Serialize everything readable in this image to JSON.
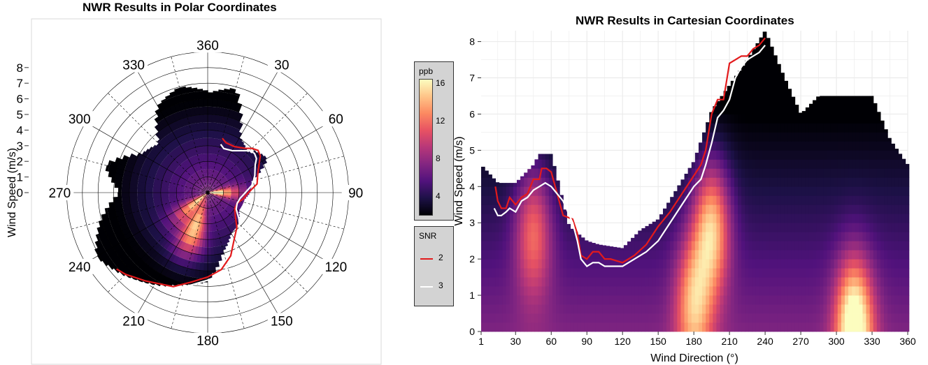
{
  "colors": {
    "palette": [
      "#000004",
      "#1d1147",
      "#51127c",
      "#832681",
      "#b73779",
      "#e75263",
      "#fc8961",
      "#fec488",
      "#fcfdbf"
    ],
    "snr2": "#e31a1c",
    "snr3": "#ffffff",
    "panel_bg": "#ffffff",
    "grid": "#ebebeb"
  },
  "icons": [
    "polar-chart",
    "cartesian-chart",
    "colorbar-legend",
    "line-legend"
  ],
  "legend": {
    "ppb": {
      "title": "ppb",
      "range": [
        2,
        16.5
      ],
      "ticks": [
        4,
        8,
        12,
        16
      ]
    },
    "snr": {
      "title": "SNR",
      "entries": [
        {
          "label": "2",
          "color": "#e31a1c"
        },
        {
          "label": "3",
          "color": "#ffffff"
        }
      ]
    }
  },
  "chart_data": [
    {
      "type": "heatmap",
      "coord": "polar",
      "title": "NWR Results in Polar Coordinates",
      "ylabel": "Wind Speed (m/s)",
      "radial_ticks": [
        0,
        1,
        2,
        3,
        4,
        5,
        6,
        7,
        8
      ],
      "radial_range": [
        0,
        9
      ],
      "angle_ticks": [
        360,
        30,
        60,
        90,
        120,
        150,
        180,
        210,
        240,
        270,
        300,
        330
      ],
      "fill_label": "ppb",
      "outer_boundary": {
        "direction": [
          1,
          15,
          30,
          45,
          50,
          60,
          75,
          90,
          100,
          120,
          135,
          150,
          165,
          180,
          195,
          210,
          225,
          240,
          255,
          270,
          285,
          300,
          315,
          330,
          345,
          360
        ],
        "wind_speed": [
          6.4,
          6.9,
          4.1,
          3.6,
          4.1,
          4.4,
          2.9,
          2.7,
          2.4,
          2.3,
          2.8,
          3.0,
          3.9,
          5.7,
          6.1,
          6.8,
          7.5,
          8.2,
          7.1,
          5.6,
          6.8,
          4.9,
          4.4,
          6.4,
          7.0,
          6.5
        ]
      },
      "snr_contours": [
        {
          "name": "2",
          "direction": [
            230,
            225,
            215,
            200,
            190,
            180,
            170,
            160,
            150,
            140,
            130,
            120,
            110,
            100,
            90,
            80,
            70,
            60,
            55,
            50,
            45,
            40,
            30,
            20,
            15
          ],
          "wind_speed": [
            7.6,
            7.4,
            6.9,
            6.4,
            5.8,
            5.4,
            5.0,
            4.3,
            3.4,
            2.9,
            2.3,
            2.0,
            2.0,
            2.3,
            2.6,
            3.2,
            3.4,
            3.8,
            4.1,
            4.2,
            4.0,
            3.7,
            3.4,
            3.4,
            3.6
          ]
        },
        {
          "name": "3",
          "direction": [
            230,
            225,
            215,
            200,
            190,
            180,
            170,
            160,
            150,
            140,
            130,
            120,
            110,
            100,
            90,
            80,
            70,
            60,
            55,
            50,
            45,
            40,
            30,
            20,
            15
          ],
          "wind_speed": [
            7.9,
            7.6,
            7.1,
            6.6,
            6.0,
            5.6,
            5.3,
            4.6,
            3.8,
            3.2,
            2.6,
            2.1,
            2.0,
            2.1,
            2.4,
            2.9,
            3.2,
            3.5,
            3.8,
            3.9,
            3.8,
            3.5,
            3.1,
            3.0,
            3.2
          ]
        }
      ],
      "hotspots": [
        {
          "direction": 200,
          "wind_speed": 2.5,
          "ppb": 14
        },
        {
          "direction": 90,
          "wind_speed": 0,
          "ppb": 16
        },
        {
          "direction": 230,
          "wind_speed": 0.8,
          "ppb": 13
        }
      ]
    },
    {
      "type": "heatmap",
      "coord": "cartesian",
      "title": "NWR Results in Cartesian Coordinates",
      "xlabel": "Wind Direction (°)",
      "ylabel": "Wind Speed (m/s)",
      "xlim": [
        1,
        360
      ],
      "ylim": [
        0,
        8.3
      ],
      "xticks": [
        1,
        30,
        60,
        90,
        120,
        150,
        180,
        210,
        240,
        270,
        300,
        330,
        360
      ],
      "yticks": [
        0,
        1,
        2,
        3,
        4,
        5,
        6,
        7,
        8
      ],
      "grid": true,
      "fill_label": "ppb",
      "outer_boundary": {
        "direction": [
          1,
          15,
          30,
          45,
          50,
          60,
          75,
          90,
          100,
          120,
          135,
          150,
          165,
          180,
          195,
          210,
          225,
          240,
          255,
          270,
          285,
          300,
          315,
          330,
          345,
          360
        ],
        "wind_speed": [
          4.6,
          4.1,
          4.1,
          4.6,
          4.9,
          4.9,
          2.9,
          2.5,
          2.4,
          2.3,
          2.8,
          3.1,
          3.9,
          4.7,
          6.1,
          6.8,
          7.5,
          8.3,
          7.1,
          6.0,
          6.5,
          6.5,
          6.5,
          6.5,
          5.3,
          4.6
        ]
      },
      "snr_contours": [
        {
          "name": "2",
          "direction": [
            13,
            15,
            18,
            22,
            25,
            30,
            35,
            40,
            45,
            50,
            52,
            56,
            60,
            70,
            78,
            82,
            85,
            90,
            95,
            100,
            105,
            110,
            120,
            130,
            140,
            150,
            160,
            170,
            180,
            186,
            190,
            195,
            200,
            205,
            210,
            215,
            220,
            225,
            230,
            235,
            240
          ],
          "wind_speed": [
            4.0,
            3.6,
            3.4,
            3.4,
            3.7,
            3.5,
            3.7,
            3.8,
            4.2,
            4.2,
            4.5,
            4.5,
            4.4,
            3.2,
            3.1,
            2.7,
            2.1,
            2.0,
            2.2,
            2.2,
            2.0,
            2.0,
            1.9,
            2.1,
            2.4,
            2.9,
            3.3,
            3.8,
            4.3,
            4.6,
            5.0,
            6.0,
            6.4,
            6.4,
            7.4,
            7.5,
            7.6,
            7.6,
            7.8,
            7.9,
            8.1
          ]
        },
        {
          "name": "3",
          "direction": [
            12,
            15,
            18,
            22,
            25,
            30,
            35,
            40,
            45,
            50,
            55,
            60,
            65,
            70,
            78,
            82,
            85,
            90,
            95,
            100,
            105,
            110,
            120,
            130,
            140,
            150,
            160,
            170,
            180,
            186,
            190,
            195,
            200,
            205,
            210,
            215,
            220,
            225,
            230,
            235,
            240
          ],
          "wind_speed": [
            3.4,
            3.2,
            3.2,
            3.3,
            3.4,
            3.3,
            3.6,
            3.7,
            3.9,
            4.0,
            4.1,
            4.0,
            3.8,
            3.6,
            3.0,
            2.5,
            2.0,
            1.8,
            1.9,
            1.9,
            1.8,
            1.8,
            1.8,
            2.0,
            2.2,
            2.5,
            3.0,
            3.5,
            4.0,
            4.2,
            4.6,
            5.2,
            5.9,
            6.1,
            6.4,
            7.0,
            7.3,
            7.5,
            7.6,
            7.7,
            7.9
          ]
        }
      ],
      "hotspots": [
        {
          "direction": 195,
          "wind_speed": 2.9,
          "ppb": 14
        },
        {
          "direction": 45,
          "wind_speed": 2.8,
          "ppb": 11
        },
        {
          "direction": 315,
          "wind_speed": 0.2,
          "ppb": 16
        },
        {
          "direction": 180,
          "wind_speed": 0.8,
          "ppb": 12
        }
      ]
    }
  ]
}
